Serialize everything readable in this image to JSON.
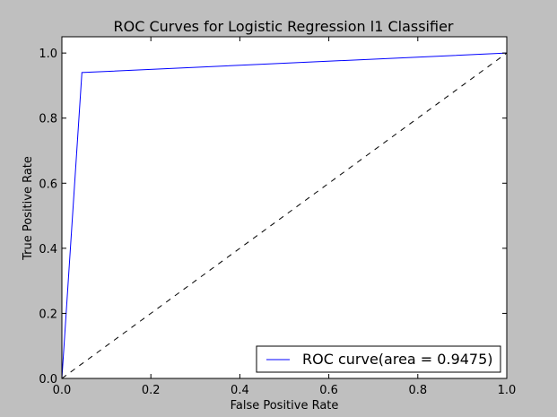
{
  "chart_data": {
    "type": "line",
    "title": "ROC Curves for Logistic Regression l1 Classifier",
    "xlabel": "False Positive Rate",
    "ylabel": "True Positive Rate",
    "xlim": [
      0.0,
      1.0
    ],
    "ylim": [
      0.0,
      1.05
    ],
    "xticks": [
      0.0,
      0.2,
      0.4,
      0.6,
      0.8,
      1.0
    ],
    "yticks": [
      0.0,
      0.2,
      0.4,
      0.6,
      0.8,
      1.0
    ],
    "xtick_labels": [
      "0.0",
      "0.2",
      "0.4",
      "0.6",
      "0.8",
      "1.0"
    ],
    "ytick_labels": [
      "0.0",
      "0.2",
      "0.4",
      "0.6",
      "0.8",
      "1.0"
    ],
    "grid": false,
    "legend_position": "bottom-right",
    "series": [
      {
        "name": "ROC curve(area = 0.9475)",
        "color": "#0000ff",
        "style": "solid",
        "x": [
          0.0,
          0.045,
          1.0
        ],
        "y": [
          0.0,
          0.94,
          1.0
        ]
      },
      {
        "color": "#000000",
        "style": "dashed",
        "x": [
          0.0,
          1.0
        ],
        "y": [
          0.0,
          1.0
        ]
      }
    ]
  }
}
